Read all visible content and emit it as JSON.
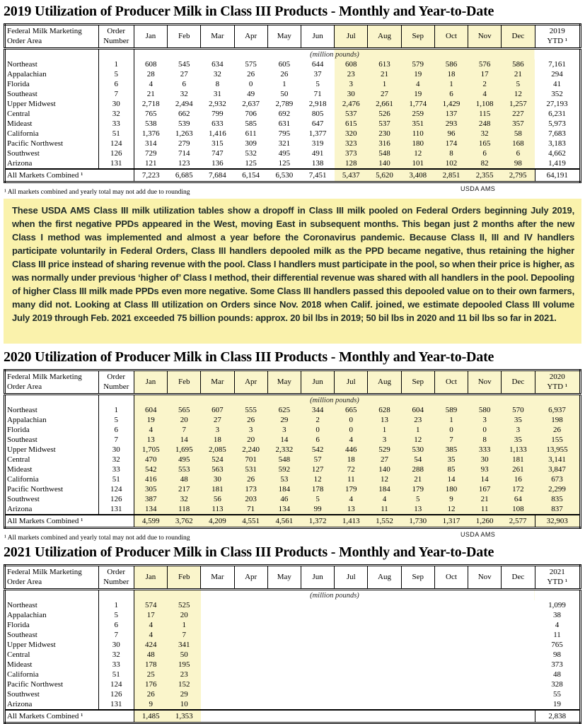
{
  "colors": {
    "table_highlight": "#FAF5CB",
    "highlight_text": "#4E4E3A",
    "note_background": "#FAF2AC",
    "note_text": "#1F2B28"
  },
  "table_common": {
    "area_header": [
      "Federal Milk Marketing",
      "Order Area"
    ],
    "order_header": [
      "Order",
      "Number"
    ],
    "months": [
      "Jan",
      "Feb",
      "Mar",
      "Apr",
      "May",
      "Jun",
      "Jul",
      "Aug",
      "Sep",
      "Oct",
      "Nov",
      "Dec"
    ],
    "unit_label": "(million pounds)",
    "total_label": "All Markets Combined ¹",
    "footnote": "¹ All markets combined and yearly total may not add due to rounding",
    "source": "USDA AMS"
  },
  "note": {
    "text": "These USDA AMS Class III milk utilization tables show a dropoff in Class III milk pooled on Federal Orders beginning July 2019, when the first negative PPDs appeared in the West, moving East in subsequent months. This began just 2 months after the new Class I method was implemented and almost a year before the Coronavirus pandemic. Because Class II, III and IV handlers participate voluntarily in Federal Orders, Class III handlers depooled milk as the PPD became negative, thus retaining the higher Class III price instead of sharing revenue with the pool. Class I handlers must participate in the pool, so when their price is higher, as was normally under previous ‘higher of’ Class I method, their differential revenue was shared with all handlers in the pool. Depooling of higher Class III milk made PPDs even more negative. Some Class III handlers passed this depooled value on to their own farmers, many did not. Looking at Class III utilization on Orders since Nov. 2018 when Calif. joined, we estimate depooled Class III volume July 2019 through Feb. 2021 exceeded 75 billion pounds: approx. 20 bil lbs in 2019; 50 bil lbs in 2020 and 11 bil lbs so far in 2021."
  },
  "tables": [
    {
      "year": "2019",
      "title": "2019 Utilization of Producer Milk in Class III Products - Monthly and Year-to-Date",
      "ytd_header": [
        "2019",
        "YTD ¹"
      ],
      "highlight_months": [
        6,
        7,
        8,
        9,
        10,
        11
      ],
      "ytd_highlight": false,
      "rows": [
        {
          "area": "Northeast",
          "order": "1",
          "values": [
            "608",
            "545",
            "634",
            "575",
            "605",
            "644",
            "608",
            "613",
            "579",
            "586",
            "576",
            "586"
          ],
          "ytd": "7,161"
        },
        {
          "area": "Appalachian",
          "order": "5",
          "values": [
            "28",
            "27",
            "32",
            "26",
            "26",
            "37",
            "23",
            "21",
            "19",
            "18",
            "17",
            "21"
          ],
          "ytd": "294"
        },
        {
          "area": "Florida",
          "order": "6",
          "values": [
            "4",
            "6",
            "8",
            "0",
            "1",
            "5",
            "3",
            "1",
            "4",
            "1",
            "2",
            "5"
          ],
          "ytd": "41"
        },
        {
          "area": "Southeast",
          "order": "7",
          "values": [
            "21",
            "32",
            "31",
            "49",
            "50",
            "71",
            "30",
            "27",
            "19",
            "6",
            "4",
            "12"
          ],
          "ytd": "352"
        },
        {
          "area": "Upper Midwest",
          "order": "30",
          "values": [
            "2,718",
            "2,494",
            "2,932",
            "2,637",
            "2,789",
            "2,918",
            "2,476",
            "2,661",
            "1,774",
            "1,429",
            "1,108",
            "1,257"
          ],
          "ytd": "27,193"
        },
        {
          "area": "Central",
          "order": "32",
          "values": [
            "765",
            "662",
            "799",
            "706",
            "692",
            "805",
            "537",
            "526",
            "259",
            "137",
            "115",
            "227"
          ],
          "ytd": "6,231"
        },
        {
          "area": "Mideast",
          "order": "33",
          "values": [
            "538",
            "539",
            "633",
            "585",
            "631",
            "647",
            "615",
            "537",
            "351",
            "293",
            "248",
            "357"
          ],
          "ytd": "5,973"
        },
        {
          "area": "California",
          "order": "51",
          "values": [
            "1,376",
            "1,263",
            "1,416",
            "611",
            "795",
            "1,377",
            "320",
            "230",
            "110",
            "96",
            "32",
            "58"
          ],
          "ytd": "7,683"
        },
        {
          "area": "Pacific Northwest",
          "order": "124",
          "values": [
            "314",
            "279",
            "315",
            "309",
            "321",
            "319",
            "323",
            "316",
            "180",
            "174",
            "165",
            "168"
          ],
          "ytd": "3,183"
        },
        {
          "area": "Southwest",
          "order": "126",
          "values": [
            "729",
            "714",
            "747",
            "532",
            "495",
            "491",
            "373",
            "548",
            "12",
            "8",
            "6",
            "6"
          ],
          "ytd": "4,662"
        },
        {
          "area": "Arizona",
          "order": "131",
          "values": [
            "121",
            "123",
            "136",
            "125",
            "125",
            "138",
            "128",
            "140",
            "101",
            "102",
            "82",
            "98"
          ],
          "ytd": "1,419"
        }
      ],
      "total": {
        "values": [
          "7,223",
          "6,685",
          "7,684",
          "6,154",
          "6,530",
          "7,451",
          "5,437",
          "5,620",
          "3,408",
          "2,851",
          "2,355",
          "2,795"
        ],
        "ytd": "64,191"
      }
    },
    {
      "year": "2020",
      "title": "2020 Utilization of Producer Milk in Class III Products - Monthly and Year-to-Date",
      "ytd_header": [
        "2020",
        "YTD ¹"
      ],
      "highlight_months": [
        0,
        1,
        2,
        3,
        4,
        5,
        6,
        7,
        8,
        9,
        10,
        11
      ],
      "ytd_highlight": true,
      "rows": [
        {
          "area": "Northeast",
          "order": "1",
          "values": [
            "604",
            "565",
            "607",
            "555",
            "625",
            "344",
            "665",
            "628",
            "604",
            "589",
            "580",
            "570"
          ],
          "ytd": "6,937"
        },
        {
          "area": "Appalachian",
          "order": "5",
          "values": [
            "19",
            "20",
            "27",
            "26",
            "29",
            "2",
            "0",
            "13",
            "23",
            "1",
            "3",
            "35"
          ],
          "ytd": "198"
        },
        {
          "area": "Florida",
          "order": "6",
          "values": [
            "4",
            "7",
            "3",
            "3",
            "3",
            "0",
            "0",
            "1",
            "1",
            "0",
            "0",
            "3"
          ],
          "ytd": "26"
        },
        {
          "area": "Southeast",
          "order": "7",
          "values": [
            "13",
            "14",
            "18",
            "20",
            "14",
            "6",
            "4",
            "3",
            "12",
            "7",
            "8",
            "35"
          ],
          "ytd": "155"
        },
        {
          "area": "Upper Midwest",
          "order": "30",
          "values": [
            "1,705",
            "1,695",
            "2,085",
            "2,240",
            "2,332",
            "542",
            "446",
            "529",
            "530",
            "385",
            "333",
            "1,133"
          ],
          "ytd": "13,955"
        },
        {
          "area": "Central",
          "order": "32",
          "values": [
            "470",
            "495",
            "524",
            "701",
            "548",
            "57",
            "18",
            "27",
            "54",
            "35",
            "30",
            "181"
          ],
          "ytd": "3,141"
        },
        {
          "area": "Mideast",
          "order": "33",
          "values": [
            "542",
            "553",
            "563",
            "531",
            "592",
            "127",
            "72",
            "140",
            "288",
            "85",
            "93",
            "261"
          ],
          "ytd": "3,847"
        },
        {
          "area": "California",
          "order": "51",
          "values": [
            "416",
            "48",
            "30",
            "26",
            "53",
            "12",
            "11",
            "12",
            "21",
            "14",
            "14",
            "16"
          ],
          "ytd": "673"
        },
        {
          "area": "Pacific Northwest",
          "order": "124",
          "values": [
            "305",
            "217",
            "181",
            "173",
            "184",
            "178",
            "179",
            "184",
            "179",
            "180",
            "167",
            "172"
          ],
          "ytd": "2,299"
        },
        {
          "area": "Southwest",
          "order": "126",
          "values": [
            "387",
            "32",
            "56",
            "203",
            "46",
            "5",
            "4",
            "4",
            "5",
            "9",
            "21",
            "64"
          ],
          "ytd": "835"
        },
        {
          "area": "Arizona",
          "order": "131",
          "values": [
            "134",
            "118",
            "113",
            "71",
            "134",
            "99",
            "13",
            "11",
            "13",
            "12",
            "11",
            "108"
          ],
          "ytd": "837"
        }
      ],
      "total": {
        "values": [
          "4,599",
          "3,762",
          "4,209",
          "4,551",
          "4,561",
          "1,372",
          "1,413",
          "1,552",
          "1,730",
          "1,317",
          "1,260",
          "2,577"
        ],
        "ytd": "32,903"
      }
    },
    {
      "year": "2021",
      "title": "2021 Utilization of Producer Milk in Class III Products - Monthly and Year-to-Date",
      "ytd_header": [
        "2021",
        "YTD ¹"
      ],
      "highlight_months": [
        0,
        1
      ],
      "ytd_highlight": false,
      "rows": [
        {
          "area": "Northeast",
          "order": "1",
          "values": [
            "574",
            "525",
            "",
            "",
            "",
            "",
            "",
            "",
            "",
            "",
            "",
            ""
          ],
          "ytd": "1,099"
        },
        {
          "area": "Appalachian",
          "order": "5",
          "values": [
            "17",
            "20",
            "",
            "",
            "",
            "",
            "",
            "",
            "",
            "",
            "",
            ""
          ],
          "ytd": "38"
        },
        {
          "area": "Florida",
          "order": "6",
          "values": [
            "4",
            "1",
            "",
            "",
            "",
            "",
            "",
            "",
            "",
            "",
            "",
            ""
          ],
          "ytd": "4"
        },
        {
          "area": "Southeast",
          "order": "7",
          "values": [
            "4",
            "7",
            "",
            "",
            "",
            "",
            "",
            "",
            "",
            "",
            "",
            ""
          ],
          "ytd": "11"
        },
        {
          "area": "Upper Midwest",
          "order": "30",
          "values": [
            "424",
            "341",
            "",
            "",
            "",
            "",
            "",
            "",
            "",
            "",
            "",
            ""
          ],
          "ytd": "765"
        },
        {
          "area": "Central",
          "order": "32",
          "values": [
            "48",
            "50",
            "",
            "",
            "",
            "",
            "",
            "",
            "",
            "",
            "",
            ""
          ],
          "ytd": "98"
        },
        {
          "area": "Mideast",
          "order": "33",
          "values": [
            "178",
            "195",
            "",
            "",
            "",
            "",
            "",
            "",
            "",
            "",
            "",
            ""
          ],
          "ytd": "373"
        },
        {
          "area": "California",
          "order": "51",
          "values": [
            "25",
            "23",
            "",
            "",
            "",
            "",
            "",
            "",
            "",
            "",
            "",
            ""
          ],
          "ytd": "48"
        },
        {
          "area": "Pacific Northwest",
          "order": "124",
          "values": [
            "176",
            "152",
            "",
            "",
            "",
            "",
            "",
            "",
            "",
            "",
            "",
            ""
          ],
          "ytd": "328"
        },
        {
          "area": "Southwest",
          "order": "126",
          "values": [
            "26",
            "29",
            "",
            "",
            "",
            "",
            "",
            "",
            "",
            "",
            "",
            ""
          ],
          "ytd": "55"
        },
        {
          "area": "Arizona",
          "order": "131",
          "values": [
            "9",
            "10",
            "",
            "",
            "",
            "",
            "",
            "",
            "",
            "",
            "",
            ""
          ],
          "ytd": "19"
        }
      ],
      "total": {
        "values": [
          "1,485",
          "1,353",
          "",
          "",
          "",
          "",
          "",
          "",
          "",
          "",
          "",
          ""
        ],
        "ytd": "2,838"
      }
    }
  ]
}
